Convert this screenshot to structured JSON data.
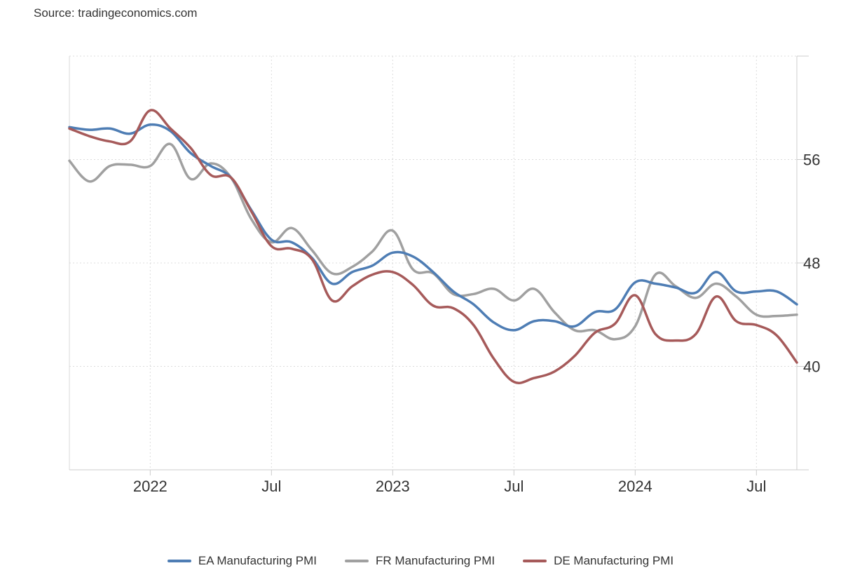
{
  "source": "Source: tradingeconomics.com",
  "chart_data": {
    "type": "line",
    "title": "",
    "xlabel": "",
    "ylabel": "",
    "x_ticks": [
      {
        "label": "2022",
        "month": 12
      },
      {
        "label": "Jul",
        "month": 18
      },
      {
        "label": "2023",
        "month": 24
      },
      {
        "label": "Jul",
        "month": 30
      },
      {
        "label": "2024",
        "month": 36
      },
      {
        "label": "Jul",
        "month": 42
      }
    ],
    "y_ticks": [
      40,
      48,
      56
    ],
    "ylim": [
      32,
      64
    ],
    "xlim": [
      8,
      44
    ],
    "grid": true,
    "legend_position": "bottom",
    "series": [
      {
        "name": "EA Manufacturing PMI",
        "color": "#4e7db4",
        "points": [
          [
            8,
            58.5
          ],
          [
            9,
            58.3
          ],
          [
            10,
            58.4
          ],
          [
            11,
            58.0
          ],
          [
            12,
            58.7
          ],
          [
            13,
            58.2
          ],
          [
            14,
            56.5
          ],
          [
            15,
            55.5
          ],
          [
            16,
            54.6
          ],
          [
            17,
            52.1
          ],
          [
            18,
            49.8
          ],
          [
            19,
            49.6
          ],
          [
            20,
            48.4
          ],
          [
            21,
            46.4
          ],
          [
            22,
            47.3
          ],
          [
            23,
            47.8
          ],
          [
            24,
            48.8
          ],
          [
            25,
            48.5
          ],
          [
            26,
            47.3
          ],
          [
            27,
            45.8
          ],
          [
            28,
            44.8
          ],
          [
            29,
            43.4
          ],
          [
            30,
            42.8
          ],
          [
            31,
            43.5
          ],
          [
            32,
            43.5
          ],
          [
            33,
            43.1
          ],
          [
            34,
            44.2
          ],
          [
            35,
            44.4
          ],
          [
            36,
            46.5
          ],
          [
            37,
            46.4
          ],
          [
            38,
            46.1
          ],
          [
            39,
            45.7
          ],
          [
            40,
            47.3
          ],
          [
            41,
            45.8
          ],
          [
            42,
            45.8
          ],
          [
            43,
            45.8
          ],
          [
            44,
            44.8
          ]
        ]
      },
      {
        "name": "FR Manufacturing PMI",
        "color": "#a0a0a0",
        "points": [
          [
            8,
            55.9
          ],
          [
            9,
            54.3
          ],
          [
            10,
            55.5
          ],
          [
            11,
            55.6
          ],
          [
            12,
            55.5
          ],
          [
            13,
            57.2
          ],
          [
            14,
            54.5
          ],
          [
            15,
            55.7
          ],
          [
            16,
            54.6
          ],
          [
            17,
            51.4
          ],
          [
            18,
            49.6
          ],
          [
            19,
            50.7
          ],
          [
            20,
            49.0
          ],
          [
            21,
            47.2
          ],
          [
            22,
            47.7
          ],
          [
            23,
            48.9
          ],
          [
            24,
            50.5
          ],
          [
            25,
            47.5
          ],
          [
            26,
            47.2
          ],
          [
            27,
            45.6
          ],
          [
            28,
            45.6
          ],
          [
            29,
            46.0
          ],
          [
            30,
            45.1
          ],
          [
            31,
            46.0
          ],
          [
            32,
            44.2
          ],
          [
            33,
            42.8
          ],
          [
            34,
            42.8
          ],
          [
            35,
            42.1
          ],
          [
            36,
            43.1
          ],
          [
            37,
            47.1
          ],
          [
            38,
            46.2
          ],
          [
            39,
            45.3
          ],
          [
            40,
            46.4
          ],
          [
            41,
            45.4
          ],
          [
            42,
            44.0
          ],
          [
            43,
            43.9
          ],
          [
            44,
            44.0
          ]
        ]
      },
      {
        "name": "DE Manufacturing PMI",
        "color": "#a65a5a",
        "points": [
          [
            8,
            58.4
          ],
          [
            9,
            57.8
          ],
          [
            10,
            57.4
          ],
          [
            11,
            57.4
          ],
          [
            12,
            59.8
          ],
          [
            13,
            58.4
          ],
          [
            14,
            56.9
          ],
          [
            15,
            54.8
          ],
          [
            16,
            54.6
          ],
          [
            17,
            52.0
          ],
          [
            18,
            49.3
          ],
          [
            19,
            49.1
          ],
          [
            20,
            48.3
          ],
          [
            21,
            45.1
          ],
          [
            22,
            46.2
          ],
          [
            23,
            47.1
          ],
          [
            24,
            47.3
          ],
          [
            25,
            46.3
          ],
          [
            26,
            44.7
          ],
          [
            27,
            44.5
          ],
          [
            28,
            43.2
          ],
          [
            29,
            40.6
          ],
          [
            30,
            38.8
          ],
          [
            31,
            39.1
          ],
          [
            32,
            39.6
          ],
          [
            33,
            40.8
          ],
          [
            34,
            42.6
          ],
          [
            35,
            43.3
          ],
          [
            36,
            45.5
          ],
          [
            37,
            42.5
          ],
          [
            38,
            42.0
          ],
          [
            39,
            42.5
          ],
          [
            40,
            45.4
          ],
          [
            41,
            43.5
          ],
          [
            42,
            43.2
          ],
          [
            43,
            42.4
          ],
          [
            44,
            40.3
          ]
        ]
      }
    ]
  }
}
